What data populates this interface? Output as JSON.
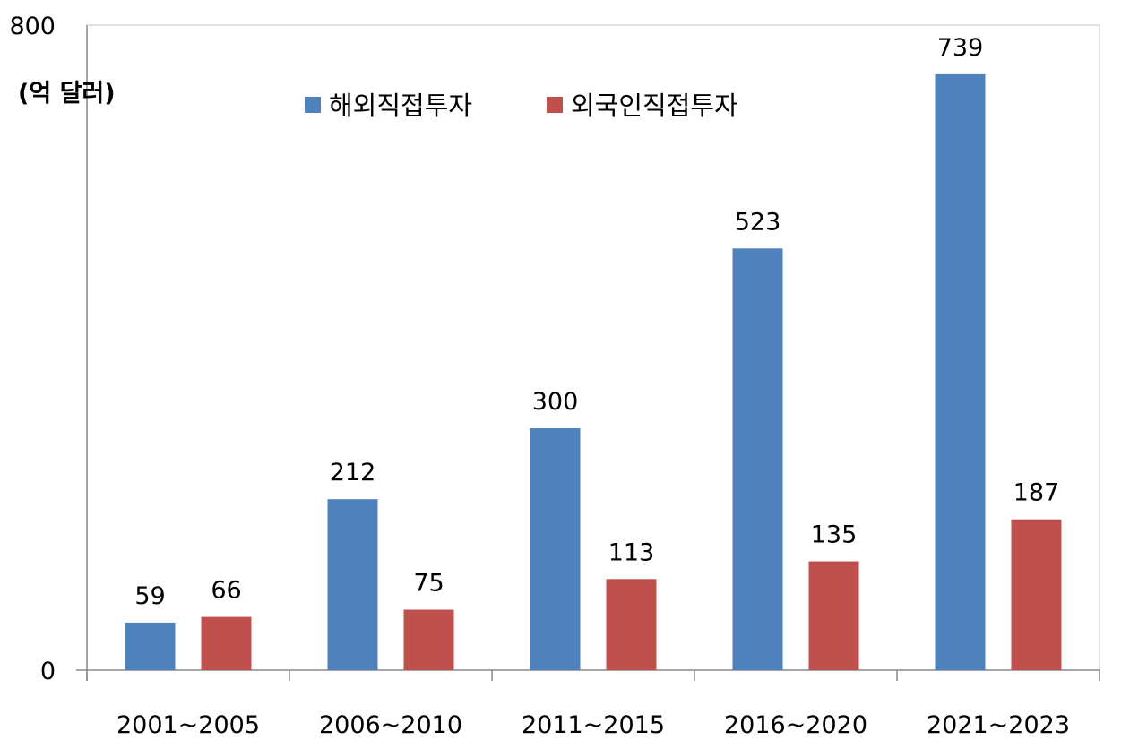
{
  "chart_data": {
    "type": "bar",
    "unit_label": "(억 달러)",
    "categories": [
      "2001~2005",
      "2006~2010",
      "2011~2015",
      "2016~2020",
      "2021~2023"
    ],
    "series": [
      {
        "name": "해외직접투자",
        "color": "#4F81BD",
        "values": [
          59,
          212,
          300,
          523,
          739
        ]
      },
      {
        "name": "외국인직접투자",
        "color": "#C0504D",
        "values": [
          66,
          75,
          113,
          135,
          187
        ]
      }
    ],
    "ylim": [
      0,
      800
    ],
    "yticks": [
      "0",
      "800"
    ],
    "legend_position": "top-center",
    "grid": false
  }
}
